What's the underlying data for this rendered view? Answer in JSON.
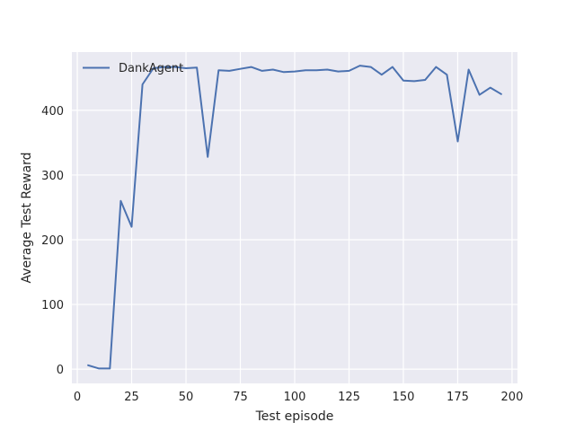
{
  "chart_data": {
    "type": "line",
    "title": "",
    "xlabel": "Test episode",
    "ylabel": "Average Test Reward",
    "xlim": [
      -2.5,
      202.5
    ],
    "ylim": [
      -22,
      490
    ],
    "xticks": [
      0,
      25,
      50,
      75,
      100,
      125,
      150,
      175,
      200
    ],
    "yticks": [
      0,
      100,
      200,
      300,
      400
    ],
    "grid": true,
    "legend_position": "top-left",
    "background_color": "#eaeaf2",
    "series": [
      {
        "name": "DankAgent",
        "color": "#4c72b0",
        "x": [
          5,
          10,
          15,
          20,
          25,
          30,
          35,
          40,
          45,
          50,
          55,
          60,
          65,
          70,
          75,
          80,
          85,
          90,
          95,
          100,
          105,
          110,
          115,
          120,
          125,
          130,
          135,
          140,
          145,
          150,
          155,
          160,
          165,
          170,
          175,
          180,
          185,
          190,
          195
        ],
        "y": [
          6,
          1,
          1,
          260,
          220,
          440,
          465,
          467,
          467,
          465,
          466,
          328,
          462,
          461,
          464,
          467,
          461,
          463,
          459,
          460,
          462,
          462,
          463,
          460,
          461,
          469,
          467,
          455,
          467,
          446,
          445,
          447,
          467,
          455,
          352,
          463,
          424,
          435,
          425
        ]
      }
    ]
  }
}
